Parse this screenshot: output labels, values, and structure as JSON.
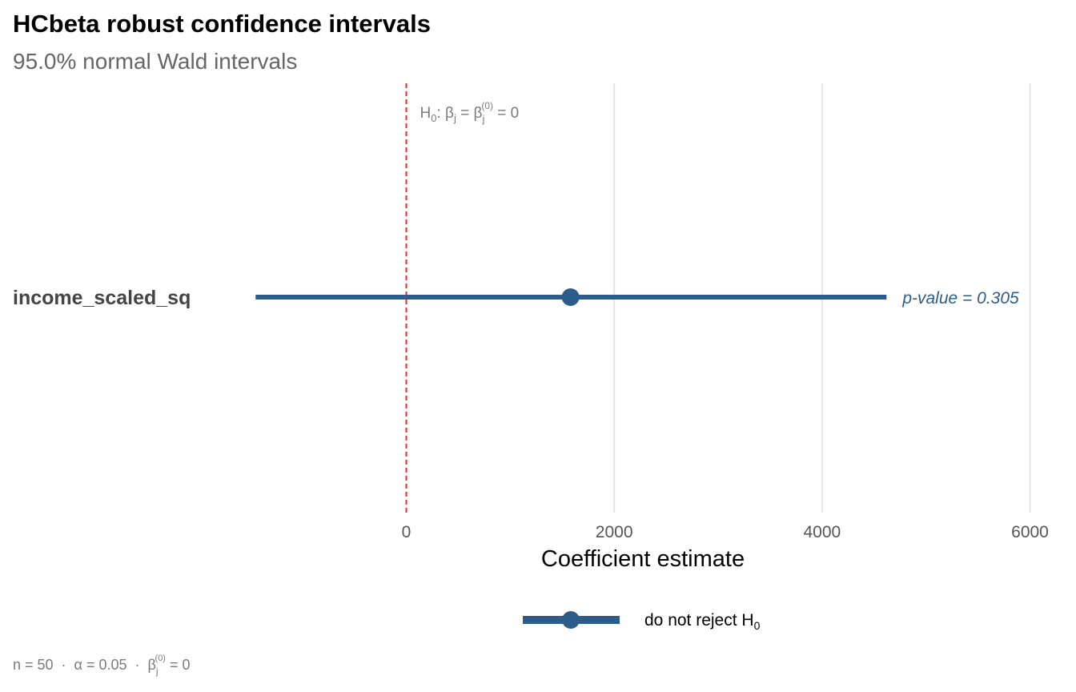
{
  "chart_data": {
    "type": "forest",
    "title": "HCbeta robust confidence intervals",
    "subtitle": "95.0% normal Wald intervals",
    "xlabel": "Coefficient estimate",
    "xlim": [
      -1500,
      6000
    ],
    "x_ticks": [
      0,
      2000,
      4000,
      6000
    ],
    "x_tick_labels": [
      "0",
      "2000",
      "4000",
      "6000"
    ],
    "grid": "vertical",
    "reference_line": {
      "x": 0,
      "color": "#d73027",
      "style": "dashed",
      "label": {
        "text": "H",
        "sub": "0",
        "rest": ": β",
        "sub2": "j",
        "rest2": " = β",
        "sub3": "j",
        "sup3": "(0)",
        "rest3": " = 0"
      }
    },
    "terms": [
      {
        "name": "income_scaled_sq",
        "estimate": 1580,
        "lower": -1450,
        "upper": 4620,
        "p_label": "p-value = 0.305",
        "group": "do not reject H0"
      }
    ],
    "legend": {
      "position": "bottom",
      "entries": [
        {
          "label": "do not reject H",
          "sub": "0",
          "color": "#2c5d8a"
        }
      ]
    },
    "caption": {
      "text": "n = 50  ·  α = 0.05  ·  β",
      "sub": "j",
      "sup": "(0)",
      "rest": " = 0"
    },
    "colors": {
      "interval": "#2c5d8a",
      "reference": "#d73027",
      "grid": "#e5e5e5"
    }
  }
}
